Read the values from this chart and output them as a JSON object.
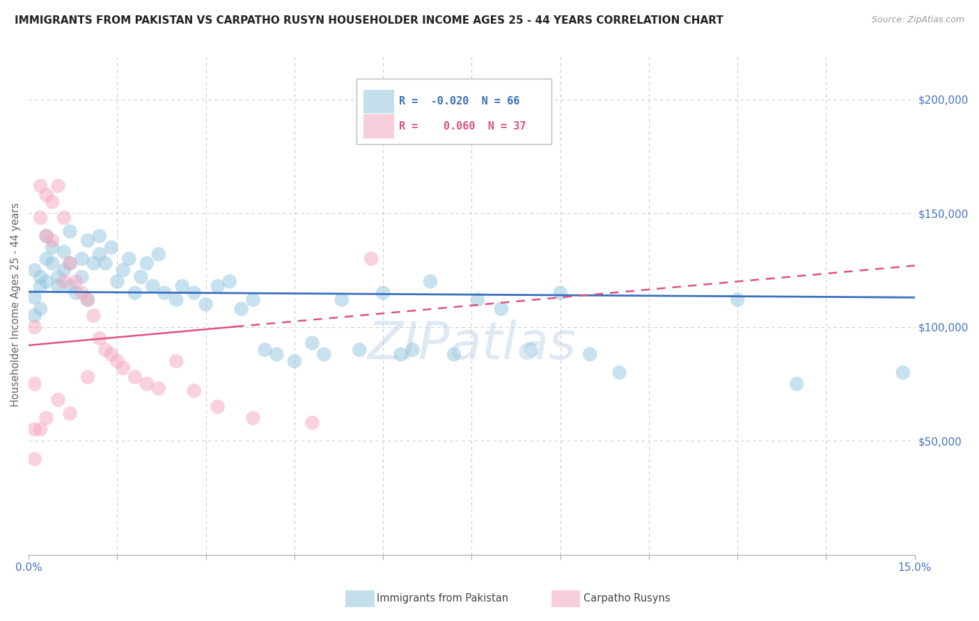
{
  "title": "IMMIGRANTS FROM PAKISTAN VS CARPATHO RUSYN HOUSEHOLDER INCOME AGES 25 - 44 YEARS CORRELATION CHART",
  "source": "Source: ZipAtlas.com",
  "ylabel": "Householder Income Ages 25 - 44 years",
  "xlim": [
    0.0,
    0.15
  ],
  "ylim": [
    0,
    220000
  ],
  "xticks": [
    0.0,
    0.015,
    0.03,
    0.045,
    0.06,
    0.075,
    0.09,
    0.105,
    0.12,
    0.135,
    0.15
  ],
  "xticklabels": [
    "0.0%",
    "",
    "",
    "",
    "",
    "",
    "",
    "",
    "",
    "",
    "15.0%"
  ],
  "yticks": [
    0,
    50000,
    100000,
    150000,
    200000
  ],
  "yticklabels": [
    "",
    "$50,000",
    "$100,000",
    "$150,000",
    "$200,000"
  ],
  "legend_r1": "R = -0.020",
  "legend_n1": "N = 66",
  "legend_r2": "R =  0.060",
  "legend_n2": "N = 37",
  "blue_color": "#92c5de",
  "pink_color": "#f4a6be",
  "blue_line_color": "#3a6ebf",
  "pink_line_color": "#e05080",
  "blue_scatter_x": [
    0.001,
    0.001,
    0.001,
    0.002,
    0.002,
    0.002,
    0.003,
    0.003,
    0.003,
    0.004,
    0.004,
    0.005,
    0.005,
    0.006,
    0.006,
    0.007,
    0.007,
    0.007,
    0.008,
    0.009,
    0.009,
    0.01,
    0.01,
    0.011,
    0.012,
    0.012,
    0.013,
    0.014,
    0.015,
    0.016,
    0.017,
    0.018,
    0.019,
    0.02,
    0.021,
    0.022,
    0.023,
    0.025,
    0.026,
    0.028,
    0.03,
    0.032,
    0.034,
    0.036,
    0.038,
    0.04,
    0.042,
    0.045,
    0.048,
    0.05,
    0.053,
    0.056,
    0.06,
    0.063,
    0.065,
    0.068,
    0.072,
    0.076,
    0.08,
    0.085,
    0.09,
    0.095,
    0.1,
    0.12,
    0.13,
    0.148
  ],
  "blue_scatter_y": [
    113000,
    125000,
    105000,
    118000,
    122000,
    108000,
    130000,
    140000,
    120000,
    128000,
    135000,
    122000,
    118000,
    133000,
    125000,
    142000,
    128000,
    118000,
    115000,
    122000,
    130000,
    138000,
    112000,
    128000,
    140000,
    132000,
    128000,
    135000,
    120000,
    125000,
    130000,
    115000,
    122000,
    128000,
    118000,
    132000,
    115000,
    112000,
    118000,
    115000,
    110000,
    118000,
    120000,
    108000,
    112000,
    90000,
    88000,
    85000,
    93000,
    88000,
    112000,
    90000,
    115000,
    88000,
    90000,
    120000,
    88000,
    112000,
    108000,
    90000,
    115000,
    88000,
    80000,
    112000,
    75000,
    80000
  ],
  "pink_scatter_x": [
    0.001,
    0.001,
    0.001,
    0.001,
    0.002,
    0.002,
    0.002,
    0.003,
    0.003,
    0.003,
    0.004,
    0.004,
    0.005,
    0.005,
    0.006,
    0.006,
    0.007,
    0.007,
    0.008,
    0.009,
    0.01,
    0.01,
    0.011,
    0.012,
    0.013,
    0.014,
    0.015,
    0.016,
    0.018,
    0.02,
    0.022,
    0.025,
    0.028,
    0.032,
    0.038,
    0.048,
    0.058
  ],
  "pink_scatter_y": [
    55000,
    42000,
    75000,
    100000,
    162000,
    148000,
    55000,
    158000,
    140000,
    60000,
    138000,
    155000,
    162000,
    68000,
    148000,
    120000,
    128000,
    62000,
    120000,
    115000,
    112000,
    78000,
    105000,
    95000,
    90000,
    88000,
    85000,
    82000,
    78000,
    75000,
    73000,
    85000,
    72000,
    65000,
    60000,
    58000,
    130000
  ],
  "blue_line_start_x": 0.0,
  "blue_line_end_x": 0.15,
  "pink_line_solid_end_x": 0.035,
  "pink_line_end_x": 0.15,
  "watermark": "ZIPatlas",
  "background_color": "#ffffff",
  "grid_color": "#cccccc",
  "grid_dash": [
    4,
    4
  ]
}
